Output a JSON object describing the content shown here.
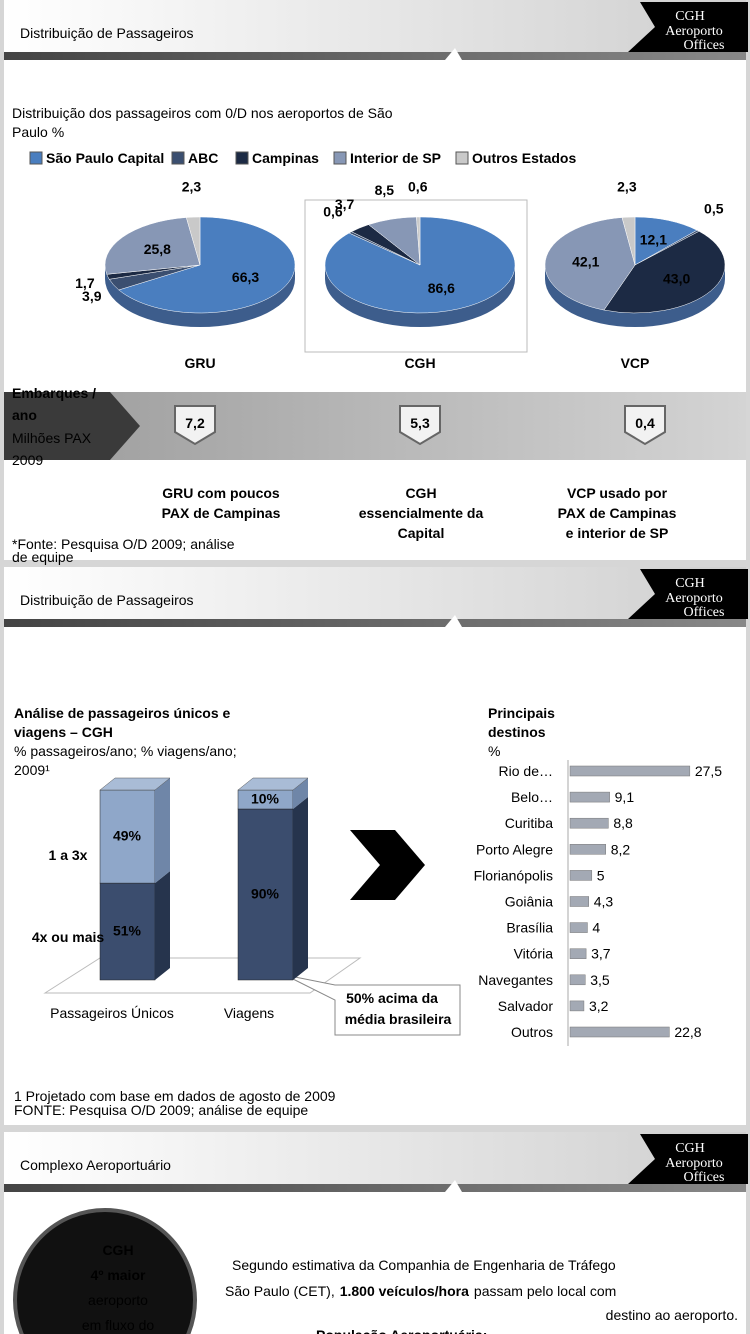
{
  "logo": {
    "name": "CGH",
    "line2": "Aeroporto",
    "line3": "Offices"
  },
  "slide1": {
    "title": "Distribuição de Passageiros",
    "subtitle_line1": "Distribuição dos passageiros com 0/D nos aeroportos de São",
    "subtitle_line2": "Paulo %",
    "legend": [
      {
        "name": "São Paulo Capital",
        "color": "#4a7ebf"
      },
      {
        "name": "ABC",
        "color": "#3b4f70"
      },
      {
        "name": "Campinas",
        "color": "#1c2a44"
      },
      {
        "name": "Interior de SP",
        "color": "#8797b5"
      },
      {
        "name": "Outros Estados",
        "color": "#c9c9c9"
      }
    ],
    "embarques": {
      "label_line1": "Embarques /",
      "label_line2": "ano",
      "unit_line1": "Milhões PAX",
      "unit_line2": "2009",
      "values": [
        "7,2",
        "5,3",
        "0,4"
      ]
    },
    "captions": [
      [
        "GRU com poucos",
        "PAX de Campinas"
      ],
      [
        "CGH",
        "essencialmente da",
        "Capital"
      ],
      [
        "VCP usado por",
        "PAX de Campinas",
        "e interior de SP"
      ]
    ],
    "source_line1": "*Fonte:  Pesquisa O/D 2009; análise",
    "source_line2": "de equipe"
  },
  "slide2": {
    "title": "Distribuição de Passageiros",
    "arrow_note_line1": "50% acima da",
    "arrow_note_line2": "média brasileira",
    "footnote1": "1 Projetado com base em dados de agosto de 2009",
    "footnote2": "FONTE:  Pesquisa O/D 2009; análise de equipe"
  },
  "slide3": {
    "title": "Complexo Aeroportuário",
    "circle": [
      "CGH",
      "4º maior",
      "aeroporto",
      "em fluxo do"
    ],
    "line1": "Segundo estimativa da Companhia de Engenharia de Tráfego",
    "line2a": "São Paulo (CET),",
    "line2b": "1.800 veículos/hora",
    "line2c": "passam pelo local com",
    "line3": "destino ao aeroporto.",
    "line4": "População Aeroportuária:"
  },
  "chart_data": [
    {
      "type": "pie",
      "title": "GRU",
      "values": [
        66.3,
        3.9,
        1.7,
        25.8,
        2.3
      ],
      "value_labels": [
        "66,3",
        "3,9",
        "1,7",
        "25,8",
        "2,3"
      ]
    },
    {
      "type": "pie",
      "title": "CGH",
      "values": [
        86.6,
        0.6,
        3.7,
        8.5,
        0.6
      ],
      "value_labels": [
        "86,6",
        "0,6",
        "3,7",
        "8,5",
        "0,6"
      ]
    },
    {
      "type": "pie",
      "title": "VCP",
      "values": [
        12.1,
        0.5,
        43.0,
        42.1,
        2.3
      ],
      "value_labels": [
        "12,1",
        "0,5",
        "43,0",
        "42,1",
        "2,3"
      ]
    },
    {
      "type": "stacked_bar",
      "title_line1": "Análise de passageiros únicos e",
      "title_line2": "viagens – CGH",
      "subtitle_line1": "% passageiros/ano; % viagens/ano;",
      "subtitle_line2": "2009¹",
      "categories": [
        "Passageiros Únicos",
        "Viagens"
      ],
      "ylim": [
        0,
        100
      ],
      "series": [
        {
          "name": "4x ou mais",
          "color": "#3b4d6e",
          "values": [
            51,
            90
          ],
          "value_labels": [
            "51%",
            "90%"
          ]
        },
        {
          "name": "1 a 3x",
          "color": "#8fa7c9",
          "values": [
            49,
            10
          ],
          "value_labels": [
            "49%",
            "10%"
          ]
        }
      ]
    },
    {
      "type": "hbar",
      "title_line1": "Principais",
      "title_line2": "destinos",
      "subtitle": "%",
      "categories": [
        "Rio de…",
        "Belo…",
        "Curitiba",
        "Porto Alegre",
        "Florianópolis",
        "Goiânia",
        "Brasília",
        "Vitória",
        "Navegantes",
        "Salvador",
        "Outros"
      ],
      "values": [
        27.5,
        9.1,
        8.8,
        8.2,
        5,
        4.3,
        4,
        3.7,
        3.5,
        3.2,
        22.8
      ],
      "value_labels": [
        "27,5",
        "9,1",
        "8,8",
        "8,2",
        "5",
        "4,3",
        "4",
        "3,7",
        "3,5",
        "3,2",
        "22,8"
      ],
      "xlim": [
        0,
        28
      ],
      "color": "#a3a9b4"
    }
  ]
}
